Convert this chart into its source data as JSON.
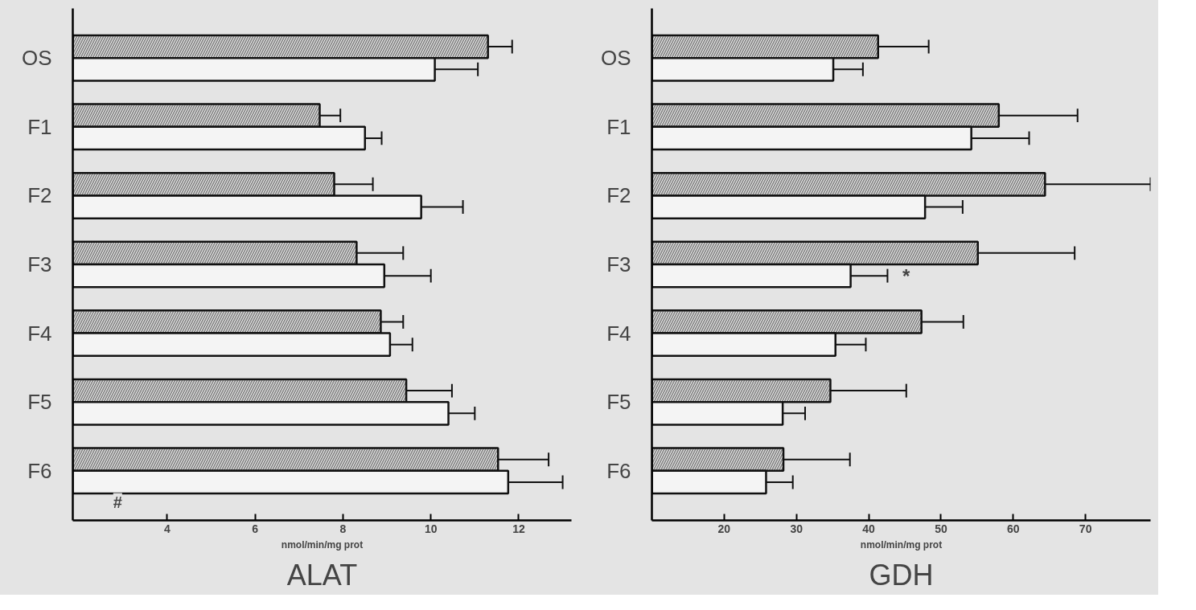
{
  "chart_data": [
    {
      "type": "bar",
      "orientation": "horizontal",
      "title": "ALAT",
      "xlabel": "nmol/min/mg prot",
      "categories": [
        "OS",
        "F1",
        "F2",
        "F3",
        "F4",
        "F5",
        "F6"
      ],
      "xlim": [
        1.85,
        13.2
      ],
      "xticks": [
        4,
        6,
        8,
        10,
        12
      ],
      "series": [
        {
          "color": "#8a8a8a",
          "values": [
            11.3,
            7.47,
            7.8,
            8.31,
            8.86,
            9.44,
            11.53
          ],
          "errors": [
            [
              11.3,
              11.85
            ],
            [
              7.47,
              7.94
            ],
            [
              7.8,
              8.68
            ],
            [
              8.31,
              9.37
            ],
            [
              8.86,
              9.37
            ],
            [
              9.44,
              10.48
            ],
            [
              11.53,
              12.68
            ]
          ]
        },
        {
          "color": "#f4f4f4",
          "values": [
            10.09,
            8.5,
            9.78,
            8.94,
            9.07,
            10.4,
            11.76
          ],
          "errors": [
            [
              10.09,
              11.07
            ],
            [
              8.5,
              8.88
            ],
            [
              9.78,
              10.73
            ],
            [
              8.94,
              10.0
            ],
            [
              9.07,
              9.58
            ],
            [
              10.4,
              11.0
            ],
            [
              11.76,
              13.0
            ]
          ]
        }
      ],
      "annotations": [
        "#"
      ]
    },
    {
      "type": "bar",
      "orientation": "horizontal",
      "title": "GDH",
      "xlabel": "nmol/min/mg prot",
      "categories": [
        "OS",
        "F1",
        "F2",
        "F3",
        "F4",
        "F5",
        "F6"
      ],
      "xlim": [
        10,
        79
      ],
      "xticks": [
        20,
        30,
        40,
        50,
        60,
        70
      ],
      "series": [
        {
          "color": "#8a8a8a",
          "values": [
            41.3,
            58.0,
            64.4,
            55.1,
            47.3,
            34.7,
            28.2
          ],
          "errors": [
            [
              41.3,
              48.3
            ],
            [
              58.0,
              68.9
            ],
            [
              64.4,
              79
            ],
            [
              55.1,
              68.5
            ],
            [
              47.3,
              53.1
            ],
            [
              34.7,
              45.2
            ],
            [
              28.2,
              37.4
            ]
          ]
        },
        {
          "color": "#f4f4f4",
          "values": [
            35.1,
            54.2,
            47.8,
            37.5,
            35.4,
            28.1,
            25.8
          ],
          "errors": [
            [
              35.1,
              39.2
            ],
            [
              54.2,
              62.2
            ],
            [
              47.8,
              53.0
            ],
            [
              37.5,
              42.6
            ],
            [
              35.4,
              39.6
            ],
            [
              28.1,
              31.2
            ],
            [
              25.8,
              29.5
            ]
          ]
        }
      ],
      "annotations": [
        {
          "text": "*",
          "x": 44,
          "y": "F3"
        }
      ]
    }
  ]
}
